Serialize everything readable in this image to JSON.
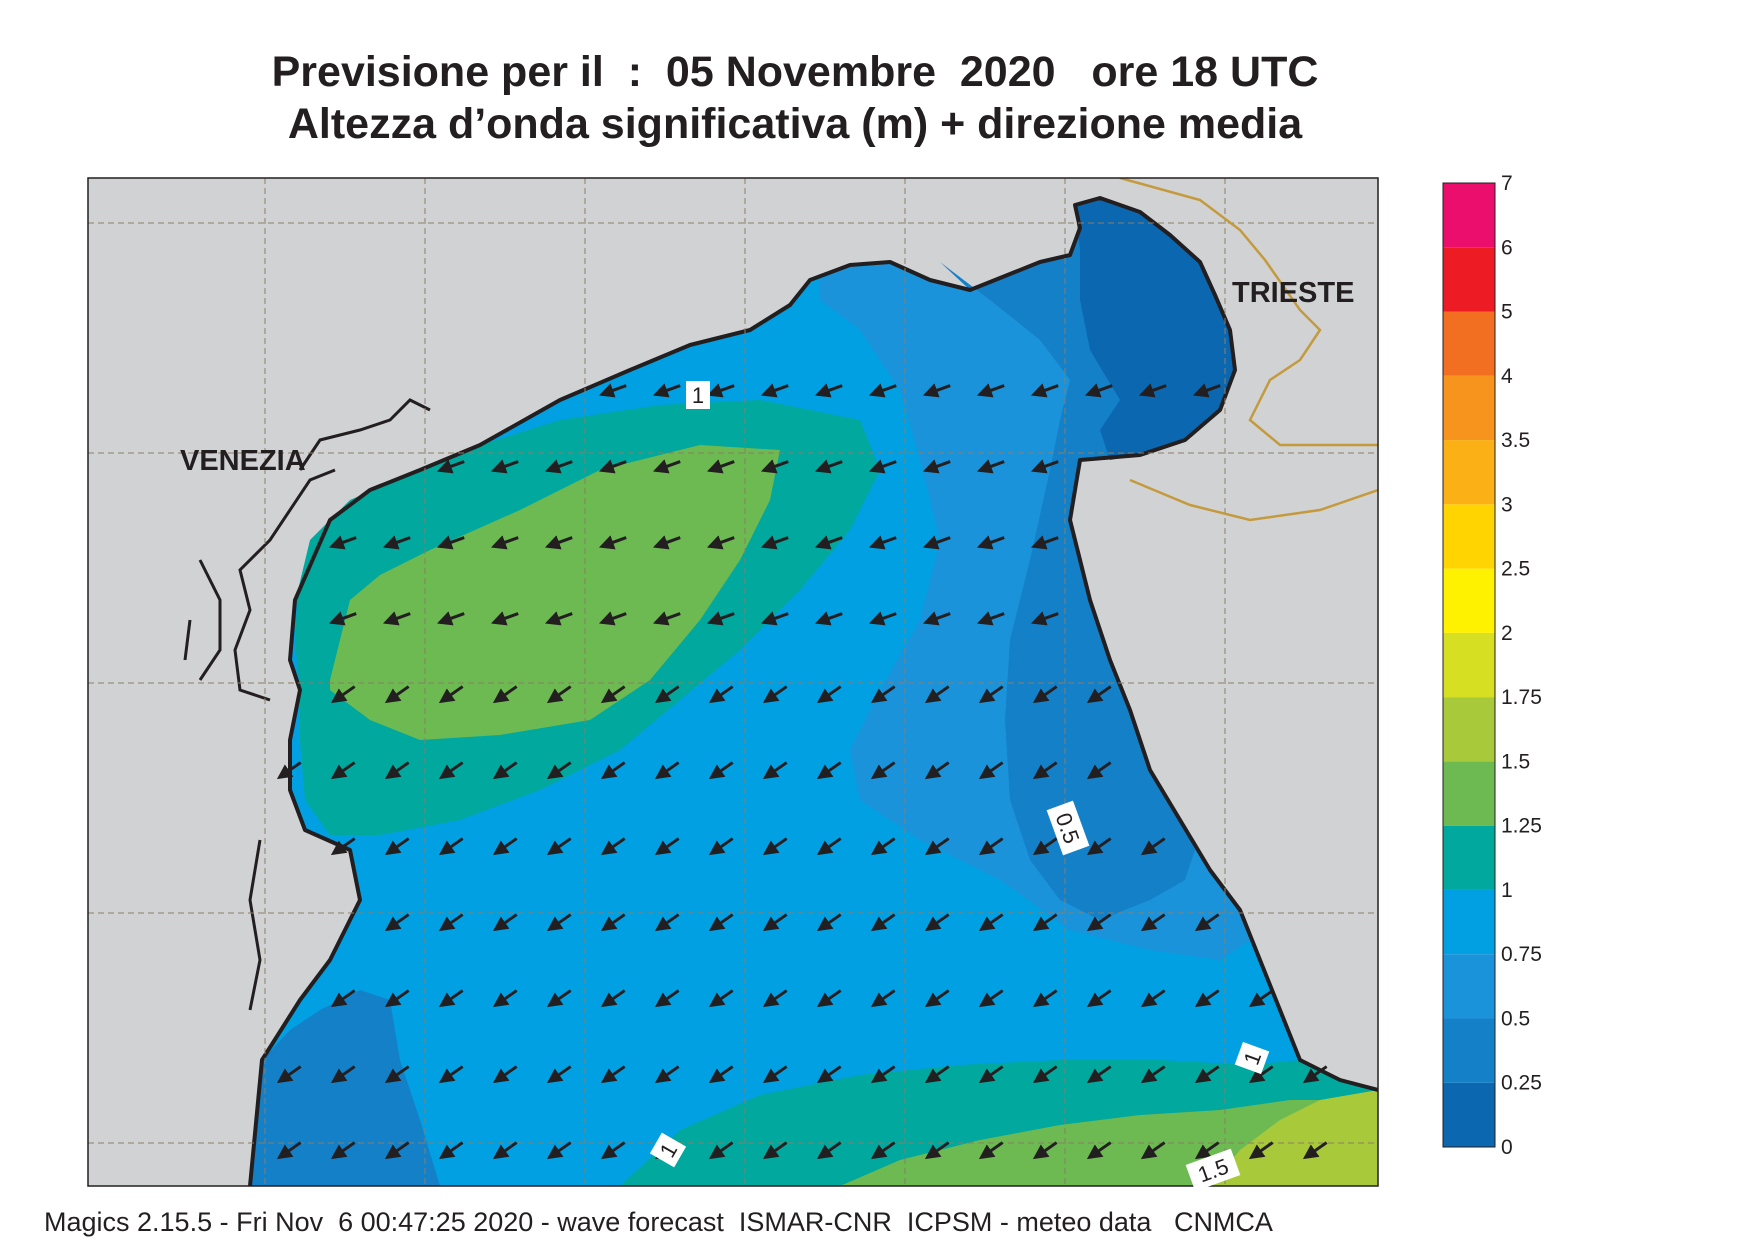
{
  "header": {
    "title_line1": "Previsione per il  :  05 Novembre  2020   ore 18 UTC",
    "title_line2": "Altezza d’onda significativa (m) + direzione media"
  },
  "footer": {
    "credits": "Magics 2.15.5 - Fri Nov  6 00:47:25 2020 - wave forecast  ISMAR-CNR  ICPSM - meteo data   CNMCA"
  },
  "map": {
    "cities": [
      {
        "name": "VENEZIA"
      },
      {
        "name": "TRIESTE"
      }
    ],
    "contour_labels": [
      "1",
      "0.5",
      "1",
      "1",
      "1.5"
    ],
    "colors": {
      "land": "#d1d2d4",
      "coast": "#231f20",
      "border": "#c49a3c",
      "arrow": "#231f20"
    },
    "mean_wave_direction": "towards south-west"
  },
  "legend": {
    "levels": [
      "0",
      "0.25",
      "0.5",
      "0.75",
      "1",
      "1.25",
      "1.5",
      "1.75",
      "2",
      "2.5",
      "3",
      "3.5",
      "4",
      "5",
      "6",
      "7"
    ],
    "colors": [
      "#0c67b1",
      "#1480c8",
      "#1b93da",
      "#00a0e3",
      "#00a89e",
      "#6dba53",
      "#a8c93a",
      "#d7df23",
      "#fff200",
      "#ffd400",
      "#fbb116",
      "#f7941d",
      "#f26f21",
      "#ed1c24",
      "#ec0e6d"
    ]
  }
}
